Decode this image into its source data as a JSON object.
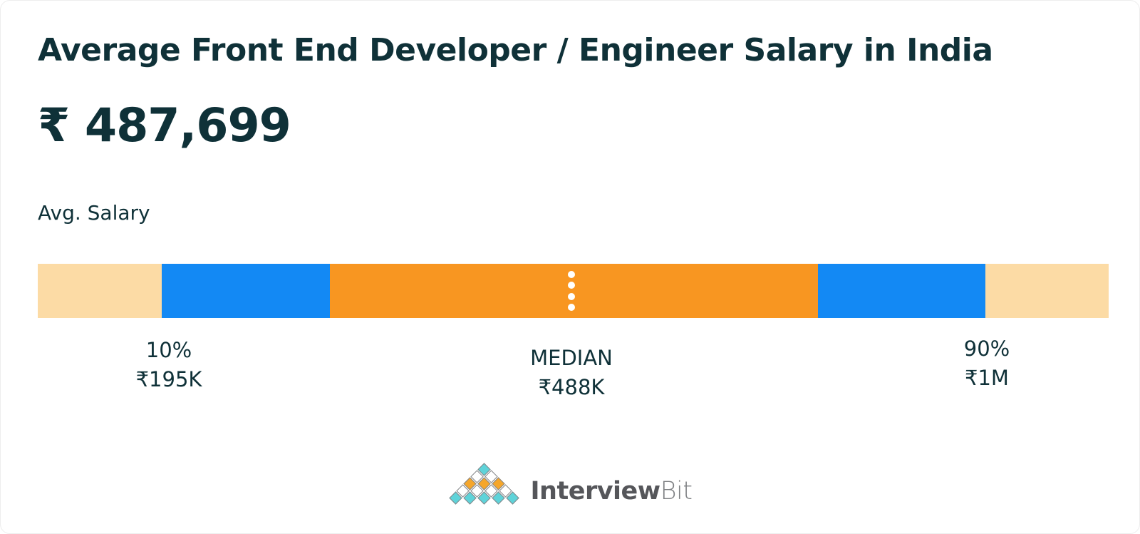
{
  "header": {
    "title": "Average Front End Developer / Engineer Salary in India",
    "average_salary": "₹ 487,699",
    "average_salary_label": "Avg. Salary"
  },
  "chart_data": {
    "type": "bar",
    "subtype": "salary-percentile-range-bar",
    "title": "Average Front End Developer / Engineer Salary in India",
    "average_salary_text": "₹ 487,699",
    "average_salary_inr": 487699,
    "percentiles": [
      {
        "label": "10%",
        "value": "₹195K",
        "value_inr": 195000
      },
      {
        "label": "MEDIAN",
        "value": "₹488K",
        "value_inr": 488000
      },
      {
        "label": "90%",
        "value": "₹1M",
        "value_inr": 1000000
      }
    ],
    "segments": [
      {
        "name": "below-10th-percentile",
        "color": "#fcdba5",
        "width_pct": 11.58
      },
      {
        "name": "10th-to-25th-percentile",
        "color": "#1389f4",
        "width_pct": 15.7
      },
      {
        "name": "25th-to-75th-percentile",
        "color": "#f89621",
        "width_pct": 45.58
      },
      {
        "name": "75th-to-90th-percentile",
        "color": "#1389f4",
        "width_pct": 15.63
      },
      {
        "name": "above-90th-percentile",
        "color": "#fcdba5",
        "width_pct": 11.51
      }
    ],
    "median_marker": {
      "style": "dotted-line",
      "dot_count": 4,
      "dot_color": "#ffffff"
    },
    "legend": "none",
    "grid": "off"
  },
  "footer": {
    "logo_text_primary": "Interview",
    "logo_text_secondary": "Bit",
    "logo_pyramid_rows": [
      [
        "teal"
      ],
      [
        "white",
        "white"
      ],
      [
        "orange",
        "orange",
        "orange"
      ],
      [
        "white",
        "white",
        "white",
        "white"
      ],
      [
        "teal",
        "teal",
        "teal",
        "teal",
        "teal"
      ]
    ],
    "logo_colors": {
      "teal": "#5ed3d9",
      "orange": "#f5a62b",
      "white": "#ffffff"
    }
  },
  "colors": {
    "text_dark": "#0f3138",
    "bar_blue": "#1389f4",
    "bar_orange": "#f89621",
    "bar_peach": "#fcdba5",
    "background": "#ffffff"
  }
}
